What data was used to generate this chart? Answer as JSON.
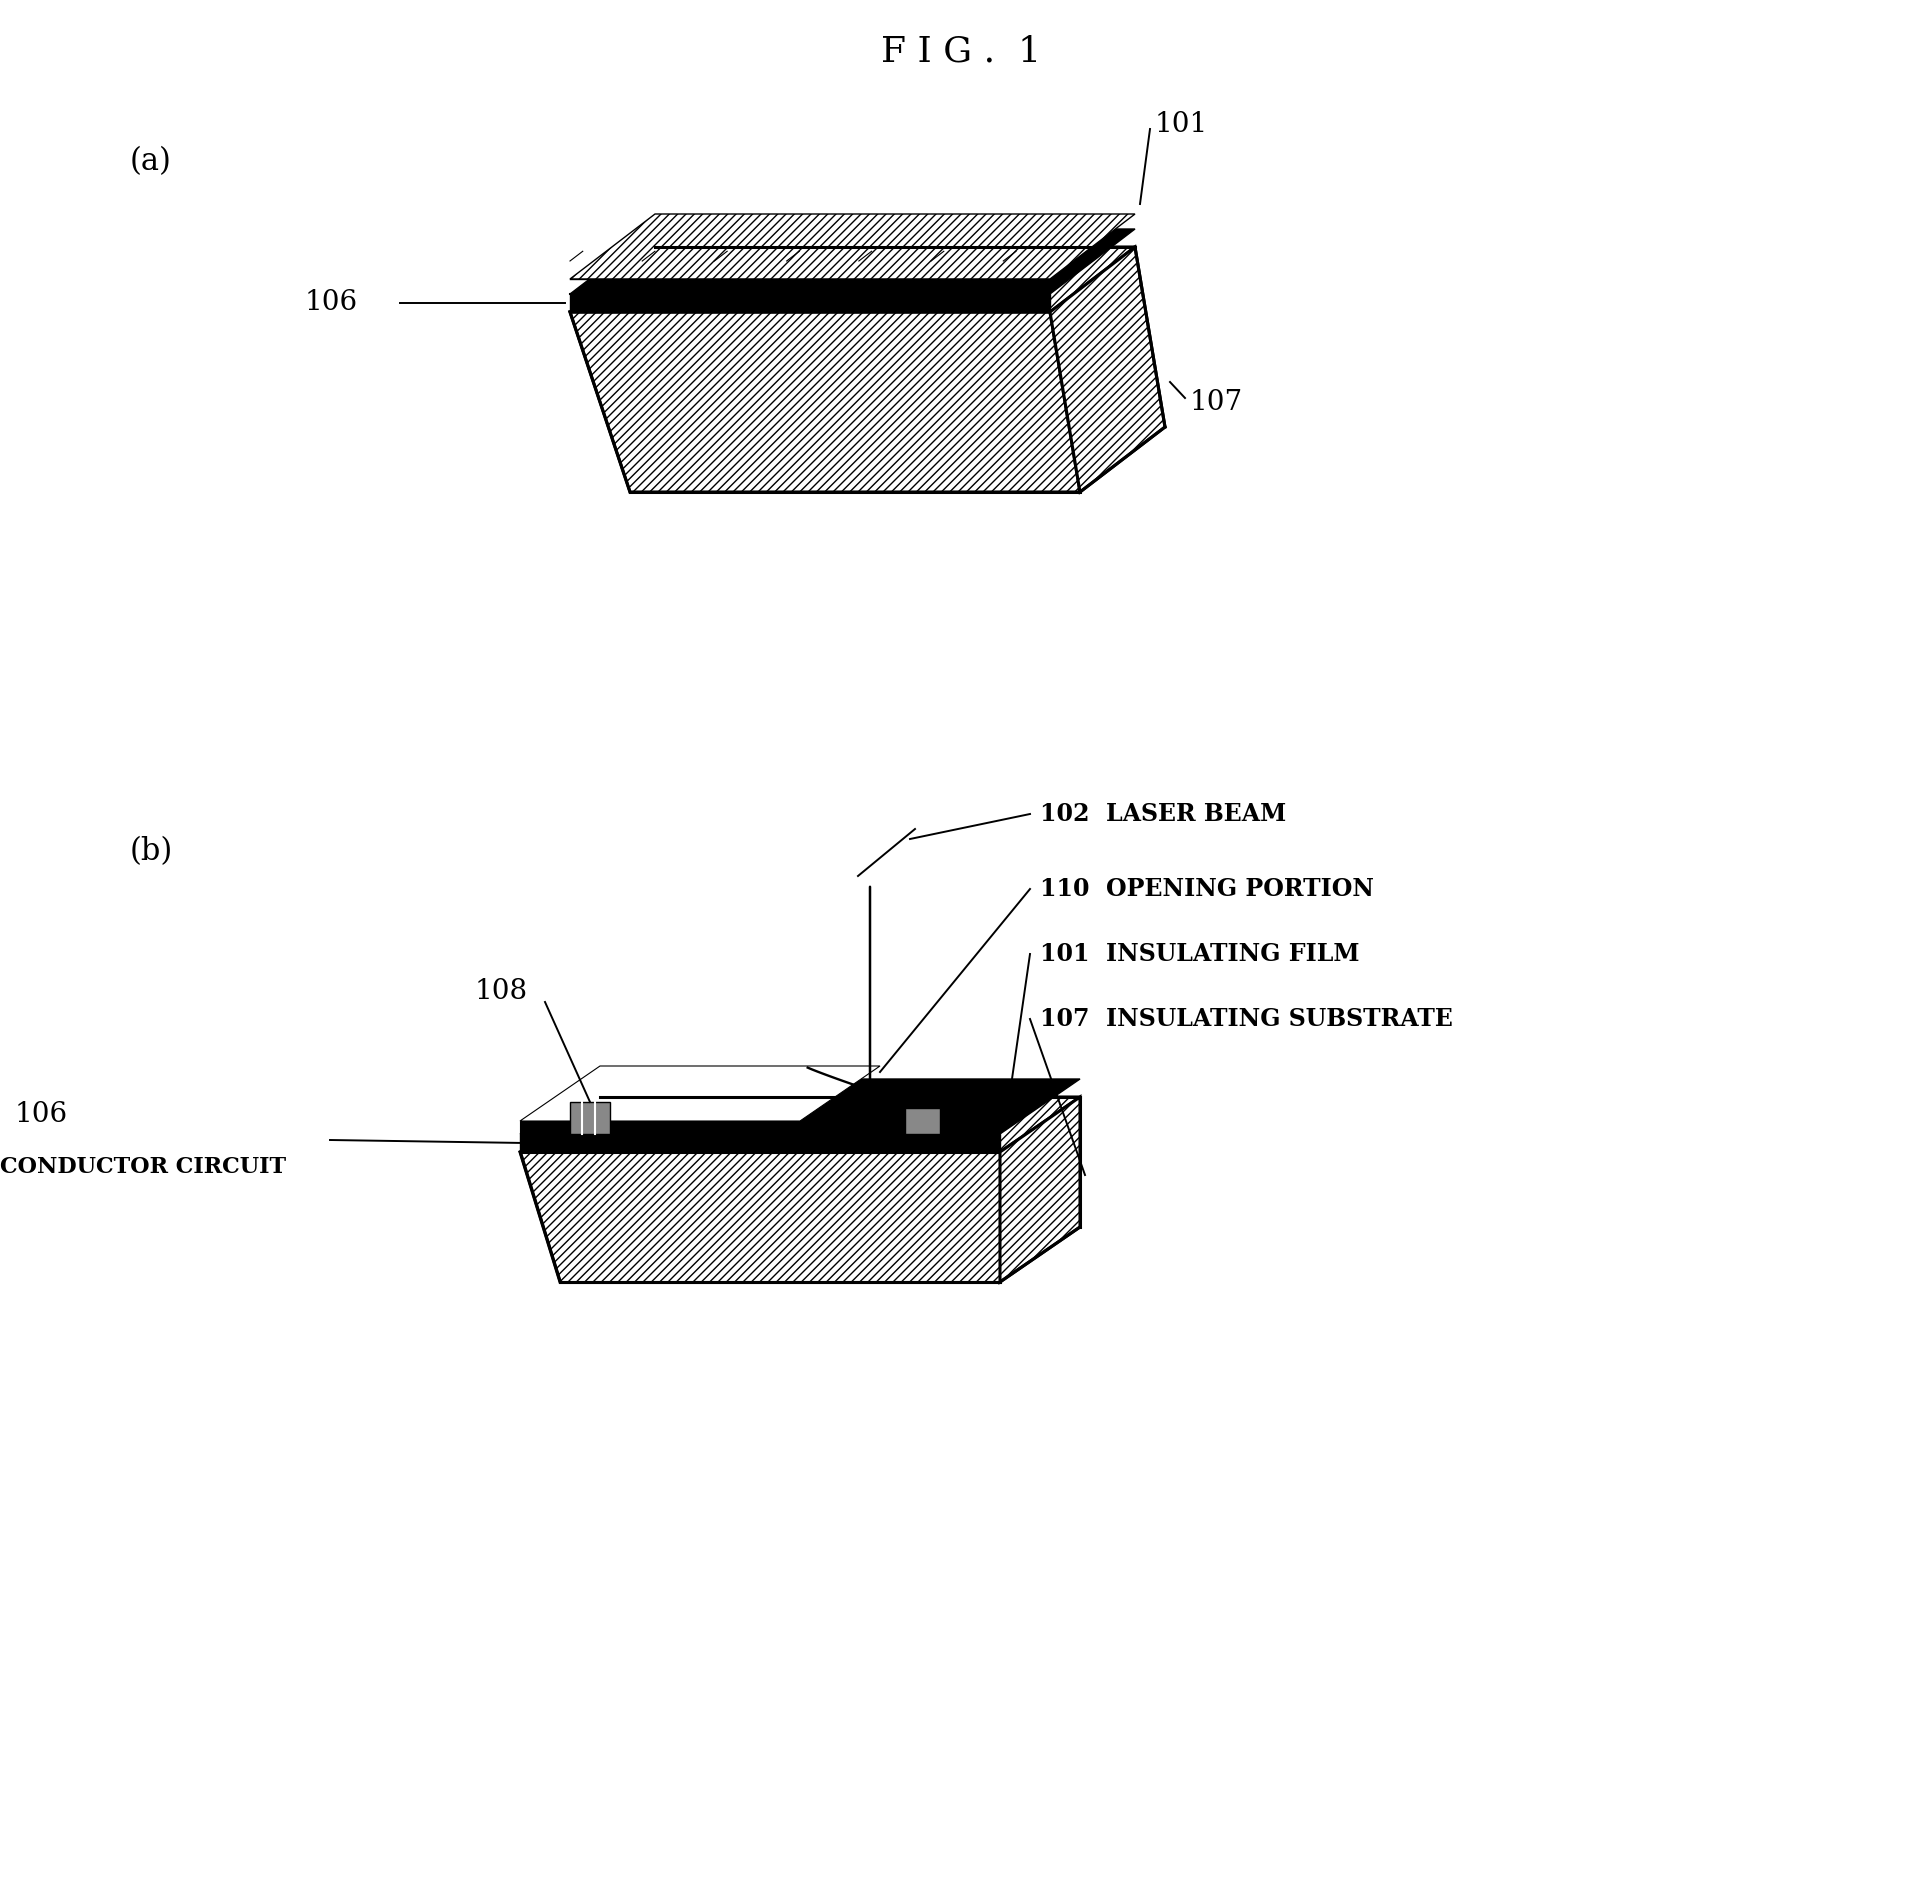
{
  "title": "F I G .  1",
  "title_fontsize": 26,
  "label_a": "(a)",
  "label_b": "(b)",
  "label_fontsize": 22,
  "annotation_fontsize": 17,
  "number_fontsize": 20,
  "bg_color": "#ffffff",
  "line_color": "#000000",
  "fig_width": 19.23,
  "fig_height": 19.02,
  "dpi": 100
}
